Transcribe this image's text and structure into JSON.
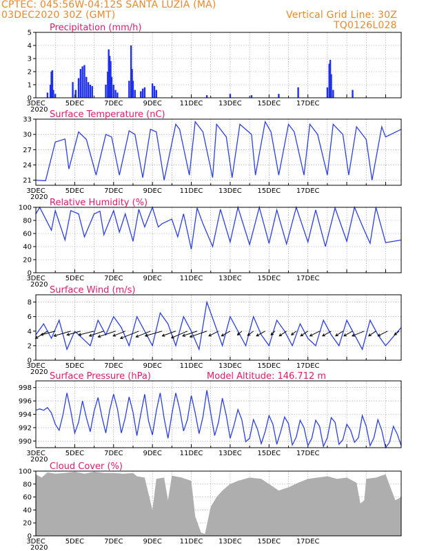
{
  "header": {
    "station": "CPTEC:   045:56W-04:12S   SANTA LUZIA (MA)",
    "datetime": "03DEC2020 30Z (GMT)",
    "grid_note": "Vertical Grid Line: 30Z",
    "run_id": "TQ0126L028"
  },
  "colors": {
    "line": "#2b3fe0",
    "bar": "#1f31e8",
    "cloud": "#a9a9a9",
    "title": "#e0196e",
    "header": "#e8892c"
  },
  "x_ticks": [
    "3DEC",
    "5DEC",
    "7DEC",
    "9DEC",
    "11DEC",
    "13DEC",
    "15DEC",
    "17DEC"
  ],
  "year_tick": "2020",
  "panels": [
    {
      "id": "precip",
      "title": "Precipitation (mm/h)",
      "extra": "",
      "y_ticks": [
        "0",
        "1",
        "2",
        "3",
        "4",
        "5"
      ]
    },
    {
      "id": "temp",
      "title": "Surface Temperature (nC)",
      "extra": "",
      "y_ticks": [
        "21",
        "24",
        "27",
        "30",
        "33"
      ]
    },
    {
      "id": "rh",
      "title": "Relative Humidity (%)",
      "extra": "",
      "y_ticks": [
        "0",
        "20",
        "40",
        "60",
        "80",
        "100"
      ]
    },
    {
      "id": "wind",
      "title": "Surface Wind (m/s)",
      "extra": "",
      "y_ticks": [
        "0",
        "2",
        "4",
        "6",
        "8"
      ]
    },
    {
      "id": "pres",
      "title": "Surface Pressure (hPa)",
      "extra": "Model Altitude: 146.712 m",
      "y_ticks": [
        "990",
        "992",
        "994",
        "996",
        "998"
      ]
    },
    {
      "id": "cloud",
      "title": "Cloud Cover (%)",
      "extra": "",
      "y_ticks": [
        "0",
        "20",
        "40",
        "60",
        "80",
        "100"
      ]
    }
  ],
  "chart_data": [
    {
      "type": "bar",
      "title": "Precipitation (mm/h)",
      "x_unit": "days since 3DEC 00Z",
      "ylim": [
        0,
        5
      ],
      "x": [
        0.6,
        0.75,
        0.8,
        0.85,
        0.9,
        1.0,
        1.9,
        2.05,
        2.2,
        2.3,
        2.4,
        2.5,
        2.6,
        2.7,
        2.8,
        2.9,
        3.6,
        3.7,
        3.75,
        3.8,
        3.85,
        3.9,
        4.0,
        4.1,
        4.2,
        4.8,
        4.9,
        4.95,
        5.0,
        5.1,
        5.4,
        5.5,
        5.6,
        6.0,
        6.1,
        6.2,
        8.8,
        10.0,
        11.1,
        12.5,
        13.5,
        15.0,
        15.1,
        15.15,
        15.2,
        15.3,
        16.3
      ],
      "values": [
        0.4,
        1.0,
        2.0,
        2.1,
        0.6,
        0.3,
        1.2,
        0.6,
        1.5,
        2.2,
        2.4,
        2.5,
        1.6,
        1.2,
        1.0,
        0.9,
        1.0,
        2.0,
        3.7,
        3.2,
        2.8,
        1.6,
        1.0,
        0.6,
        0.4,
        1.3,
        4.0,
        2.2,
        1.3,
        0.6,
        0.5,
        0.7,
        0.8,
        1.1,
        0.9,
        0.6,
        0.2,
        0.3,
        0.2,
        0.3,
        0.8,
        0.8,
        2.6,
        2.9,
        1.8,
        0.6,
        0.6
      ]
    },
    {
      "type": "line",
      "title": "Surface Temperature (nC)",
      "x_unit": "days since 3DEC 00Z",
      "ylim": [
        20,
        33
      ],
      "x": [
        0,
        0.5,
        1.0,
        1.5,
        1.7,
        2.2,
        2.6,
        3.1,
        3.6,
        3.9,
        4.3,
        4.8,
        5.1,
        5.5,
        5.9,
        6.2,
        6.6,
        7.2,
        7.4,
        7.9,
        8.2,
        8.6,
        9.1,
        9.3,
        9.8,
        10.1,
        10.5,
        11.1,
        11.3,
        11.8,
        12.1,
        12.5,
        13.0,
        13.3,
        13.8,
        14.1,
        14.5,
        15.0,
        15.3,
        15.8,
        16.1,
        16.5,
        17.0,
        17.3,
        17.8,
        18.0,
        18.8
      ],
      "values": [
        21,
        20.9,
        28.5,
        29.1,
        23.2,
        30.5,
        29,
        22,
        30,
        29.5,
        22,
        30.7,
        30,
        21.5,
        31,
        30.5,
        21,
        32,
        31,
        22,
        32.5,
        30.5,
        21.5,
        32,
        29.5,
        21.5,
        32,
        30,
        22,
        32.5,
        30.5,
        22,
        32,
        30.5,
        22,
        32,
        30,
        22,
        32,
        30,
        22,
        31.5,
        29,
        21,
        31.5,
        29.5,
        31
      ]
    },
    {
      "type": "line",
      "title": "Relative Humidity (%)",
      "x_unit": "days since 3DEC 00Z",
      "ylim": [
        0,
        100
      ],
      "x": [
        0,
        0.2,
        0.8,
        1.0,
        1.5,
        1.8,
        2.2,
        2.5,
        3.0,
        3.3,
        3.5,
        4.0,
        4.3,
        4.6,
        5.0,
        5.3,
        5.6,
        6.0,
        6.3,
        6.5,
        7.0,
        7.3,
        7.6,
        8.0,
        8.3,
        8.6,
        9.1,
        9.5,
        10.0,
        10.4,
        11.0,
        11.5,
        12.0,
        12.4,
        12.9,
        13.4,
        14.0,
        14.4,
        14.9,
        15.4,
        16.0,
        16.4,
        16.9,
        17.2,
        17.5,
        18.0,
        18.8
      ],
      "values": [
        90,
        100,
        65,
        95,
        50,
        95,
        90,
        55,
        90,
        94,
        58,
        95,
        62,
        90,
        48,
        97,
        70,
        100,
        70,
        75,
        82,
        55,
        90,
        36,
        99,
        75,
        40,
        97,
        47,
        100,
        43,
        100,
        45,
        96,
        44,
        100,
        47,
        96,
        40,
        99,
        48,
        100,
        65,
        45,
        100,
        46,
        50
      ]
    },
    {
      "type": "line",
      "title": "Surface Wind (m/s)",
      "x_unit": "days since 3DEC 00Z",
      "ylim": [
        0,
        9
      ],
      "x": [
        0,
        0.4,
        0.8,
        1.2,
        1.6,
        2.0,
        2.4,
        2.8,
        3.2,
        3.6,
        4.0,
        4.4,
        4.8,
        5.2,
        5.6,
        6.0,
        6.4,
        6.8,
        7.2,
        7.6,
        8.0,
        8.4,
        8.8,
        9.2,
        9.6,
        10.0,
        10.4,
        10.8,
        11.2,
        11.6,
        12.0,
        12.4,
        12.8,
        13.2,
        13.6,
        14.0,
        14.4,
        14.8,
        15.2,
        15.6,
        16.0,
        16.4,
        16.8,
        17.2,
        17.6,
        18.0,
        18.8
      ],
      "values": [
        3.5,
        5,
        3,
        5.5,
        1.5,
        4,
        3,
        2,
        5.5,
        3.5,
        6,
        4.5,
        2,
        6,
        4,
        2,
        6.5,
        5,
        2,
        6,
        4,
        1.5,
        8,
        5,
        2,
        6,
        4,
        2,
        6,
        3.5,
        2,
        5.5,
        4,
        2,
        5,
        3,
        2,
        5.5,
        3.5,
        2,
        5.5,
        3.5,
        1.5,
        5.5,
        3.5,
        2,
        4.5
      ],
      "vectors": {
        "x": [
          0.6,
          1.0,
          1.8,
          2.3,
          3.0,
          3.5,
          4.1,
          4.6,
          5.3,
          5.9,
          6.5,
          7.2,
          7.8,
          8.3,
          8.8,
          9.4,
          10.0,
          10.6,
          11.2,
          11.8,
          12.3,
          12.9,
          13.4,
          14.0,
          14.6,
          15.2,
          15.8,
          16.3,
          16.9,
          17.5,
          18.1,
          18.7
        ],
        "u": [
          -2.5,
          -3.0,
          -3.5,
          -2.8,
          -3.2,
          -3.0,
          -3.6,
          -2.5,
          -3.8,
          -3.0,
          -3.5,
          -2.8,
          -3.3,
          -3.0,
          -3.5,
          -2.0,
          -1.8,
          -0.9,
          -1.2,
          -1.8,
          -0.8,
          -1.5,
          -1.0,
          -1.5,
          -2.0,
          -1.8,
          -1.5,
          -1.8,
          -2.5,
          -1.5,
          -2.0,
          -1.0
        ],
        "v": [
          -1.5,
          -0.8,
          -1.0,
          -0.8,
          -0.8,
          -1.0,
          -1.2,
          -1.0,
          -1.5,
          -1.2,
          -1.0,
          -1.0,
          -1.4,
          -1.0,
          -1.2,
          -1.0,
          -1.0,
          -0.8,
          -0.9,
          -1.0,
          -0.8,
          -1.0,
          -0.8,
          -1.0,
          -1.0,
          -1.0,
          -1.0,
          -1.0,
          -1.0,
          -1.0,
          -1.0,
          -0.8
        ]
      }
    },
    {
      "type": "line",
      "title": "Surface Pressure (hPa)",
      "x_unit": "days since 3DEC 00Z",
      "ylim": [
        989,
        999
      ],
      "x": [
        0,
        0.2,
        0.4,
        0.6,
        0.8,
        1.0,
        1.2,
        1.4,
        1.6,
        1.8,
        2.0,
        2.2,
        2.4,
        2.6,
        2.8,
        3.0,
        3.2,
        3.4,
        3.6,
        3.8,
        4.0,
        4.2,
        4.4,
        4.6,
        4.8,
        5.0,
        5.2,
        5.4,
        5.6,
        5.8,
        6.0,
        6.2,
        6.4,
        6.6,
        6.8,
        7.0,
        7.2,
        7.4,
        7.6,
        7.8,
        8.0,
        8.2,
        8.4,
        8.6,
        8.8,
        9.0,
        9.2,
        9.4,
        9.6,
        9.8,
        10.0,
        10.2,
        10.4,
        10.6,
        10.8,
        11.0,
        11.2,
        11.4,
        11.6,
        11.8,
        12.0,
        12.2,
        12.4,
        12.6,
        12.8,
        13.0,
        13.2,
        13.4,
        13.6,
        13.8,
        14.0,
        14.2,
        14.4,
        14.6,
        14.8,
        15.0,
        15.2,
        15.4,
        15.6,
        15.8,
        16.0,
        16.2,
        16.4,
        16.6,
        16.8,
        17.0,
        17.2,
        17.4,
        17.6,
        17.8,
        18.0,
        18.2,
        18.4,
        18.6,
        18.8
      ],
      "values": [
        994.6,
        994.8,
        994.6,
        995,
        994.2,
        992.5,
        991.6,
        994,
        997.2,
        994.5,
        991.2,
        992.8,
        996,
        993.5,
        991.4,
        994.5,
        996.5,
        993.6,
        991.2,
        994.6,
        997,
        994.8,
        991.2,
        993.5,
        996.6,
        994.3,
        990.8,
        994,
        997,
        993,
        990.9,
        994.5,
        997.2,
        993.4,
        990.4,
        994,
        997.2,
        994.8,
        991.5,
        993.2,
        996.8,
        994.2,
        991.1,
        993.6,
        997.6,
        994.2,
        990.8,
        992.8,
        996.4,
        993.8,
        990.4,
        992.4,
        994.7,
        993.2,
        989.9,
        990.4,
        993.2,
        991.8,
        989.6,
        991.4,
        993.8,
        992.5,
        989.5,
        991.4,
        993.6,
        992.6,
        989.4,
        990.6,
        993.1,
        992,
        989.3,
        990.4,
        993.1,
        992.2,
        989.2,
        990.5,
        993.5,
        992.8,
        989.5,
        990.2,
        992.5,
        991.6,
        989.8,
        990.5,
        993.8,
        992.2,
        989.3,
        990.5,
        993.2,
        991.6,
        989,
        989.8,
        992.2,
        991,
        989.3
      ]
    },
    {
      "type": "area",
      "title": "Cloud Cover (%)",
      "x_unit": "days since 3DEC 00Z",
      "ylim": [
        0,
        100
      ],
      "x": [
        0,
        0.3,
        0.6,
        1.0,
        1.5,
        2.0,
        2.5,
        3.0,
        3.5,
        4.0,
        4.5,
        5.0,
        5.2,
        5.6,
        6.0,
        6.2,
        6.6,
        6.8,
        7.0,
        7.5,
        8.0,
        8.2,
        8.5,
        8.7,
        9.0,
        9.3,
        9.6,
        10.0,
        10.4,
        11.0,
        11.6,
        12.0,
        12.5,
        13.0,
        13.5,
        14.0,
        14.5,
        15.0,
        15.5,
        16.0,
        16.5,
        16.7,
        16.9,
        17.0,
        17.5,
        18.0,
        18.5,
        18.8
      ],
      "values": [
        95,
        90,
        98,
        96,
        97,
        99,
        96,
        99,
        97,
        97,
        96,
        97,
        92,
        90,
        40,
        88,
        90,
        55,
        93,
        90,
        85,
        30,
        5,
        3,
        45,
        60,
        70,
        80,
        85,
        90,
        88,
        80,
        70,
        75,
        82,
        88,
        90,
        92,
        88,
        90,
        82,
        50,
        55,
        88,
        90,
        95,
        55,
        60
      ]
    }
  ]
}
